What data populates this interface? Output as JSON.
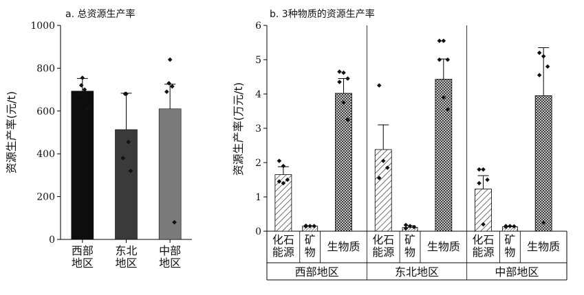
{
  "chart_data": [
    {
      "type": "bar",
      "title": "a. 总资源生产率",
      "ylabel": "资源生产率(元/t)",
      "ylim": [
        0,
        1000
      ],
      "yticks": [
        0,
        200,
        400,
        600,
        800,
        1000
      ],
      "categories": [
        "西部\n地区",
        "东北\n地区",
        "中部\n地区"
      ],
      "values": [
        693,
        513,
        610
      ],
      "error_upper": [
        752,
        683,
        725
      ],
      "points": [
        [
          755,
          720,
          700,
          680,
          610
        ],
        [
          680,
          680,
          455,
          380,
          320
        ],
        [
          840,
          730,
          715,
          690,
          80
        ]
      ],
      "colors": [
        "#0d0d0d",
        "#3a3a3a",
        "#7a7a7a"
      ]
    },
    {
      "type": "bar",
      "title": "b. 3种物质的资源生产率",
      "ylabel": "资源生产率(万元/t)",
      "ylim": [
        0,
        6
      ],
      "yticks": [
        0,
        1,
        2,
        3,
        4,
        5,
        6
      ],
      "groups": [
        "西部地区",
        "东北地区",
        "中部地区"
      ],
      "subcategories": [
        "化石\n能源",
        "矿\n物",
        "生物质"
      ],
      "values": [
        [
          1.65,
          0.15,
          4.02
        ],
        [
          2.38,
          0.11,
          4.43
        ],
        [
          1.23,
          0.13,
          3.95
        ]
      ],
      "error_upper": [
        [
          1.88,
          0.16,
          4.45
        ],
        [
          3.1,
          0.16,
          5.02
        ],
        [
          1.62,
          0.15,
          5.35
        ]
      ],
      "points": [
        [
          [
            2.05,
            1.9,
            1.5,
            1.45,
            1.4
          ],
          [
            0.16,
            0.15,
            0.15,
            0.14
          ],
          [
            4.65,
            4.62,
            4.45,
            4.35,
            3.75,
            3.25
          ]
        ],
        [
          [
            4.25,
            2.05,
            1.85,
            1.55
          ],
          [
            0.18,
            0.15,
            0.12,
            0.08
          ],
          [
            5.55,
            5.55,
            5.0,
            5.0,
            3.9,
            3.55
          ]
        ],
        [
          [
            1.8,
            1.8,
            1.5,
            1.4,
            0.2
          ],
          [
            0.15,
            0.15,
            0.14,
            0.13
          ],
          [
            5.2,
            5.1,
            4.8,
            4.55,
            0.25
          ]
        ]
      ],
      "patterns": [
        "diagonal-hatch",
        "dense-diagonal-hatch",
        "crosshatch"
      ]
    }
  ]
}
